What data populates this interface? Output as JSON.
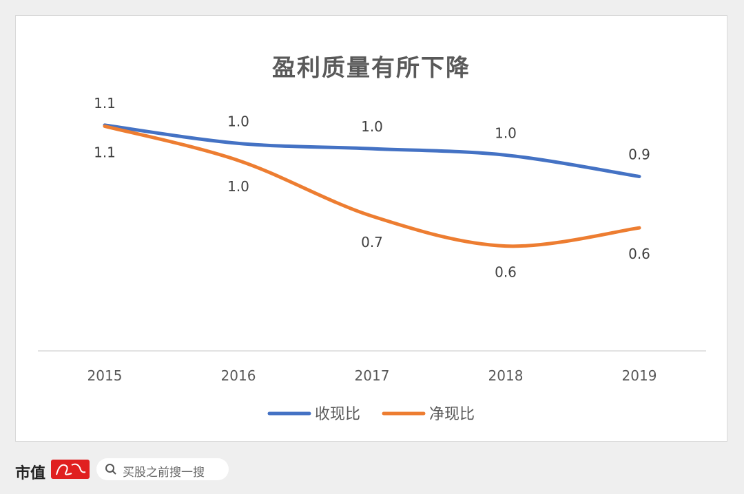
{
  "chart_data": {
    "type": "line",
    "title": "盈利质量有所下降",
    "categories": [
      "2015",
      "2016",
      "2017",
      "2018",
      "2019"
    ],
    "series": [
      {
        "name": "收现比",
        "color": "#4472c4",
        "values": [
          1.1,
          1.0,
          1.0,
          1.0,
          0.9
        ],
        "labels": [
          "1.1",
          "1.0",
          "1.0",
          "1.0",
          "0.9"
        ],
        "label_position": "above"
      },
      {
        "name": "净现比",
        "color": "#ed7d31",
        "values": [
          1.1,
          1.0,
          0.7,
          0.6,
          0.6
        ],
        "labels": [
          "1.1",
          "1.0",
          "0.7",
          "0.6",
          "0.6"
        ],
        "label_position": "below"
      }
    ],
    "ylim": [
      0,
      1.3
    ],
    "grid": false,
    "legend_position": "bottom"
  },
  "footer": {
    "brand": "市值",
    "search_placeholder": "买股之前搜一搜"
  }
}
